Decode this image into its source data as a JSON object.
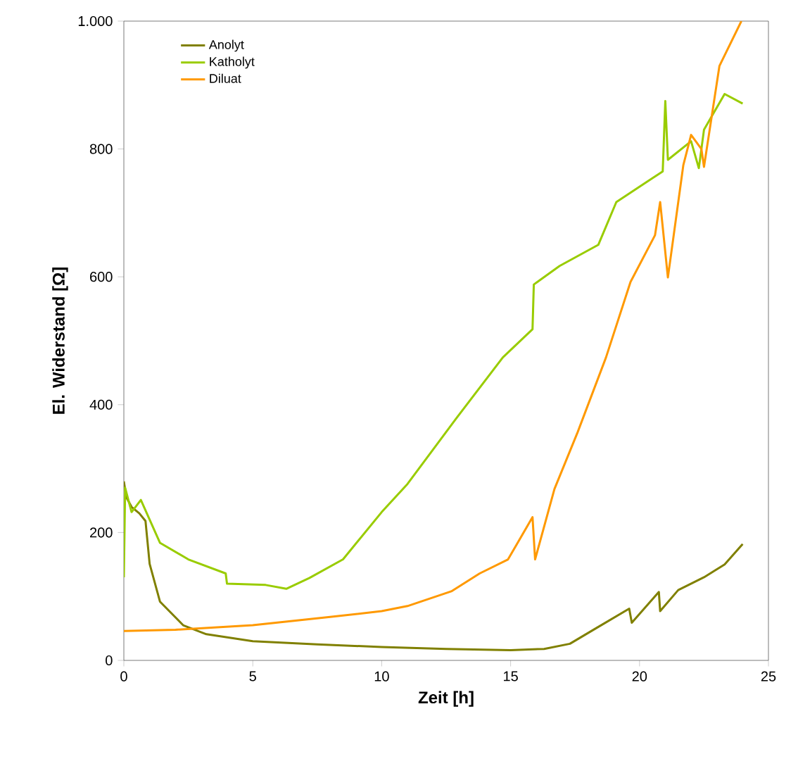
{
  "chart_data": {
    "type": "line",
    "xlabel": "Zeit [h]",
    "ylabel": "El. Widerstand [Ω]",
    "xlim": [
      0,
      25
    ],
    "ylim": [
      0,
      1000
    ],
    "xticks": [
      0,
      5,
      10,
      15,
      20,
      25
    ],
    "yticks": [
      0,
      200,
      400,
      600,
      800,
      {
        "value": 1000,
        "label": "1.000"
      }
    ],
    "grid": false,
    "legend": "top left",
    "marker": "none",
    "line_style": "solid",
    "series": [
      {
        "name": "Anolyt",
        "color": "#808000",
        "x": [
          0,
          0.1,
          0.3,
          0.6,
          0.84,
          1.0,
          1.4,
          2.3,
          3.2,
          5,
          7.5,
          10,
          12.5,
          15,
          16.3,
          17.3,
          18.3,
          19.6,
          19.7,
          20.75,
          20.8,
          21.5,
          22.5,
          23.3,
          24
        ],
        "values": [
          280,
          255,
          240,
          230,
          218,
          151,
          92,
          55,
          41,
          30,
          25,
          21,
          18,
          16,
          18,
          26,
          50,
          81,
          59,
          107,
          77,
          110,
          130,
          150,
          182
        ]
      },
      {
        "name": "Katholyt",
        "color": "#99cc00",
        "x": [
          0,
          0.05,
          0.3,
          0.66,
          1.4,
          2.5,
          3.95,
          4.0,
          5.5,
          6.3,
          7.2,
          8.5,
          10,
          11,
          12.9,
          14.7,
          15.85,
          15.9,
          16.9,
          18.4,
          19.1,
          20.9,
          21.0,
          21.1,
          22.0,
          22.3,
          22.5,
          23.3,
          24
        ],
        "values": [
          130,
          270,
          232,
          251,
          184,
          158,
          136,
          120,
          118,
          112,
          129,
          158,
          232,
          276,
          379,
          474,
          518,
          588,
          617,
          650,
          717,
          765,
          875,
          783,
          812,
          770,
          830,
          886,
          871
        ]
      },
      {
        "name": "Diluat",
        "color": "#ff9900",
        "x": [
          0,
          2,
          5,
          8,
          10,
          11,
          12.7,
          13.8,
          14.9,
          15.85,
          15.95,
          16.7,
          17.6,
          18.7,
          19.65,
          20.6,
          20.8,
          21.1,
          21.7,
          22.0,
          22.4,
          22.5,
          23.1,
          23.95
        ],
        "values": [
          46,
          48,
          55,
          68,
          77,
          85,
          108,
          136,
          158,
          224,
          158,
          268,
          357,
          474,
          592,
          665,
          717,
          599,
          775,
          822,
          800,
          772,
          930,
          1000
        ]
      }
    ]
  }
}
